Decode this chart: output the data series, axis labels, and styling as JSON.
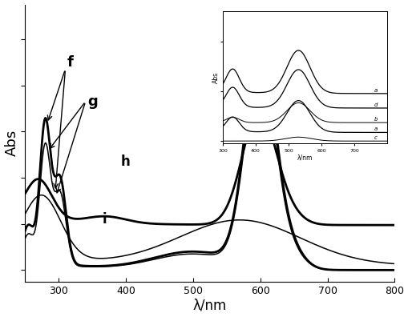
{
  "xlim": [
    250,
    800
  ],
  "xlabel": "λ/nm",
  "ylabel": "Abs",
  "bg_color": "#ffffff",
  "inset_xlabel": "λ/nm",
  "inset_ylabel": "Abs"
}
